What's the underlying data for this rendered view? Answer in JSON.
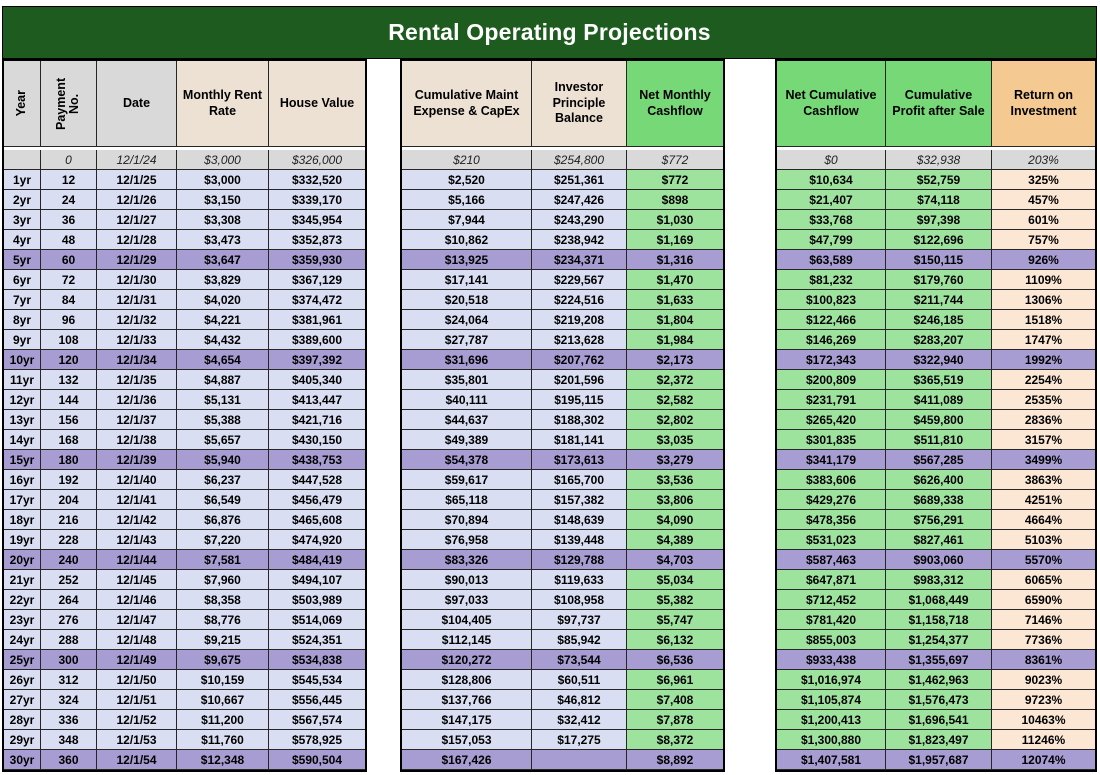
{
  "title": "Rental Operating Projections",
  "columns": {
    "left": [
      "Year",
      "Payment No.",
      "Date",
      "Monthly Rent Rate",
      "House Value"
    ],
    "middle": [
      "Cumulative Maint Expense & CapEx",
      "Investor Principle Balance",
      "Net Monthly Cashflow"
    ],
    "right": [
      "Net Cumulative Cashflow",
      "Cumulative Profit after Sale",
      "Return on Investment"
    ]
  },
  "colors": {
    "title_bg": "#1d5c1e",
    "header_gray": "#d9d9d9",
    "header_tan": "#ede1d4",
    "header_green": "#77d877",
    "header_orange": "#f5c992",
    "cell_lavender": "#d9def2",
    "cell_green": "#9ee39d",
    "cell_peach": "#fbe7d4",
    "highlight_purple": "#a89dd3",
    "baseline_gray": "#d9d9d9"
  },
  "rows": [
    {
      "y": "",
      "p": "0",
      "d": "12/1/24",
      "rent": "$3,000",
      "house": "$326,000",
      "maint": "$210",
      "inv": "$254,800",
      "cf": "$772",
      "ncf": "$0",
      "profit": "$32,938",
      "roi": "203%"
    },
    {
      "y": "1yr",
      "p": "12",
      "d": "12/1/25",
      "rent": "$3,000",
      "house": "$332,520",
      "maint": "$2,520",
      "inv": "$251,361",
      "cf": "$772",
      "ncf": "$10,634",
      "profit": "$52,759",
      "roi": "325%"
    },
    {
      "y": "2yr",
      "p": "24",
      "d": "12/1/26",
      "rent": "$3,150",
      "house": "$339,170",
      "maint": "$5,166",
      "inv": "$247,426",
      "cf": "$898",
      "ncf": "$21,407",
      "profit": "$74,118",
      "roi": "457%"
    },
    {
      "y": "3yr",
      "p": "36",
      "d": "12/1/27",
      "rent": "$3,308",
      "house": "$345,954",
      "maint": "$7,944",
      "inv": "$243,290",
      "cf": "$1,030",
      "ncf": "$33,768",
      "profit": "$97,398",
      "roi": "601%"
    },
    {
      "y": "4yr",
      "p": "48",
      "d": "12/1/28",
      "rent": "$3,473",
      "house": "$352,873",
      "maint": "$10,862",
      "inv": "$238,942",
      "cf": "$1,169",
      "ncf": "$47,799",
      "profit": "$122,696",
      "roi": "757%"
    },
    {
      "y": "5yr",
      "p": "60",
      "d": "12/1/29",
      "rent": "$3,647",
      "house": "$359,930",
      "maint": "$13,925",
      "inv": "$234,371",
      "cf": "$1,316",
      "ncf": "$63,589",
      "profit": "$150,115",
      "roi": "926%"
    },
    {
      "y": "6yr",
      "p": "72",
      "d": "12/1/30",
      "rent": "$3,829",
      "house": "$367,129",
      "maint": "$17,141",
      "inv": "$229,567",
      "cf": "$1,470",
      "ncf": "$81,232",
      "profit": "$179,760",
      "roi": "1109%"
    },
    {
      "y": "7yr",
      "p": "84",
      "d": "12/1/31",
      "rent": "$4,020",
      "house": "$374,472",
      "maint": "$20,518",
      "inv": "$224,516",
      "cf": "$1,633",
      "ncf": "$100,823",
      "profit": "$211,744",
      "roi": "1306%"
    },
    {
      "y": "8yr",
      "p": "96",
      "d": "12/1/32",
      "rent": "$4,221",
      "house": "$381,961",
      "maint": "$24,064",
      "inv": "$219,208",
      "cf": "$1,804",
      "ncf": "$122,466",
      "profit": "$246,185",
      "roi": "1518%"
    },
    {
      "y": "9yr",
      "p": "108",
      "d": "12/1/33",
      "rent": "$4,432",
      "house": "$389,600",
      "maint": "$27,787",
      "inv": "$213,628",
      "cf": "$1,984",
      "ncf": "$146,269",
      "profit": "$283,207",
      "roi": "1747%"
    },
    {
      "y": "10yr",
      "p": "120",
      "d": "12/1/34",
      "rent": "$4,654",
      "house": "$397,392",
      "maint": "$31,696",
      "inv": "$207,762",
      "cf": "$2,173",
      "ncf": "$172,343",
      "profit": "$322,940",
      "roi": "1992%"
    },
    {
      "y": "11yr",
      "p": "132",
      "d": "12/1/35",
      "rent": "$4,887",
      "house": "$405,340",
      "maint": "$35,801",
      "inv": "$201,596",
      "cf": "$2,372",
      "ncf": "$200,809",
      "profit": "$365,519",
      "roi": "2254%"
    },
    {
      "y": "12yr",
      "p": "144",
      "d": "12/1/36",
      "rent": "$5,131",
      "house": "$413,447",
      "maint": "$40,111",
      "inv": "$195,115",
      "cf": "$2,582",
      "ncf": "$231,791",
      "profit": "$411,089",
      "roi": "2535%"
    },
    {
      "y": "13yr",
      "p": "156",
      "d": "12/1/37",
      "rent": "$5,388",
      "house": "$421,716",
      "maint": "$44,637",
      "inv": "$188,302",
      "cf": "$2,802",
      "ncf": "$265,420",
      "profit": "$459,800",
      "roi": "2836%"
    },
    {
      "y": "14yr",
      "p": "168",
      "d": "12/1/38",
      "rent": "$5,657",
      "house": "$430,150",
      "maint": "$49,389",
      "inv": "$181,141",
      "cf": "$3,035",
      "ncf": "$301,835",
      "profit": "$511,810",
      "roi": "3157%"
    },
    {
      "y": "15yr",
      "p": "180",
      "d": "12/1/39",
      "rent": "$5,940",
      "house": "$438,753",
      "maint": "$54,378",
      "inv": "$173,613",
      "cf": "$3,279",
      "ncf": "$341,179",
      "profit": "$567,285",
      "roi": "3499%"
    },
    {
      "y": "16yr",
      "p": "192",
      "d": "12/1/40",
      "rent": "$6,237",
      "house": "$447,528",
      "maint": "$59,617",
      "inv": "$165,700",
      "cf": "$3,536",
      "ncf": "$383,606",
      "profit": "$626,400",
      "roi": "3863%"
    },
    {
      "y": "17yr",
      "p": "204",
      "d": "12/1/41",
      "rent": "$6,549",
      "house": "$456,479",
      "maint": "$65,118",
      "inv": "$157,382",
      "cf": "$3,806",
      "ncf": "$429,276",
      "profit": "$689,338",
      "roi": "4251%"
    },
    {
      "y": "18yr",
      "p": "216",
      "d": "12/1/42",
      "rent": "$6,876",
      "house": "$465,608",
      "maint": "$70,894",
      "inv": "$148,639",
      "cf": "$4,090",
      "ncf": "$478,356",
      "profit": "$756,291",
      "roi": "4664%"
    },
    {
      "y": "19yr",
      "p": "228",
      "d": "12/1/43",
      "rent": "$7,220",
      "house": "$474,920",
      "maint": "$76,958",
      "inv": "$139,448",
      "cf": "$4,389",
      "ncf": "$531,023",
      "profit": "$827,461",
      "roi": "5103%"
    },
    {
      "y": "20yr",
      "p": "240",
      "d": "12/1/44",
      "rent": "$7,581",
      "house": "$484,419",
      "maint": "$83,326",
      "inv": "$129,788",
      "cf": "$4,703",
      "ncf": "$587,463",
      "profit": "$903,060",
      "roi": "5570%"
    },
    {
      "y": "21yr",
      "p": "252",
      "d": "12/1/45",
      "rent": "$7,960",
      "house": "$494,107",
      "maint": "$90,013",
      "inv": "$119,633",
      "cf": "$5,034",
      "ncf": "$647,871",
      "profit": "$983,312",
      "roi": "6065%"
    },
    {
      "y": "22yr",
      "p": "264",
      "d": "12/1/46",
      "rent": "$8,358",
      "house": "$503,989",
      "maint": "$97,033",
      "inv": "$108,958",
      "cf": "$5,382",
      "ncf": "$712,452",
      "profit": "$1,068,449",
      "roi": "6590%"
    },
    {
      "y": "23yr",
      "p": "276",
      "d": "12/1/47",
      "rent": "$8,776",
      "house": "$514,069",
      "maint": "$104,405",
      "inv": "$97,737",
      "cf": "$5,747",
      "ncf": "$781,420",
      "profit": "$1,158,718",
      "roi": "7146%"
    },
    {
      "y": "24yr",
      "p": "288",
      "d": "12/1/48",
      "rent": "$9,215",
      "house": "$524,351",
      "maint": "$112,145",
      "inv": "$85,942",
      "cf": "$6,132",
      "ncf": "$855,003",
      "profit": "$1,254,377",
      "roi": "7736%"
    },
    {
      "y": "25yr",
      "p": "300",
      "d": "12/1/49",
      "rent": "$9,675",
      "house": "$534,838",
      "maint": "$120,272",
      "inv": "$73,544",
      "cf": "$6,536",
      "ncf": "$933,438",
      "profit": "$1,355,697",
      "roi": "8361%"
    },
    {
      "y": "26yr",
      "p": "312",
      "d": "12/1/50",
      "rent": "$10,159",
      "house": "$545,534",
      "maint": "$128,806",
      "inv": "$60,511",
      "cf": "$6,961",
      "ncf": "$1,016,974",
      "profit": "$1,462,963",
      "roi": "9023%"
    },
    {
      "y": "27yr",
      "p": "324",
      "d": "12/1/51",
      "rent": "$10,667",
      "house": "$556,445",
      "maint": "$137,766",
      "inv": "$46,812",
      "cf": "$7,408",
      "ncf": "$1,105,874",
      "profit": "$1,576,473",
      "roi": "9723%"
    },
    {
      "y": "28yr",
      "p": "336",
      "d": "12/1/52",
      "rent": "$11,200",
      "house": "$567,574",
      "maint": "$147,175",
      "inv": "$32,412",
      "cf": "$7,878",
      "ncf": "$1,200,413",
      "profit": "$1,696,541",
      "roi": "10463%"
    },
    {
      "y": "29yr",
      "p": "348",
      "d": "12/1/53",
      "rent": "$11,760",
      "house": "$578,925",
      "maint": "$157,053",
      "inv": "$17,275",
      "cf": "$8,372",
      "ncf": "$1,300,880",
      "profit": "$1,823,497",
      "roi": "11246%"
    },
    {
      "y": "30yr",
      "p": "360",
      "d": "12/1/54",
      "rent": "$12,348",
      "house": "$590,504",
      "maint": "$167,426",
      "inv": "",
      "cf": "$8,892",
      "ncf": "$1,407,581",
      "profit": "$1,957,687",
      "roi": "12074%"
    }
  ]
}
